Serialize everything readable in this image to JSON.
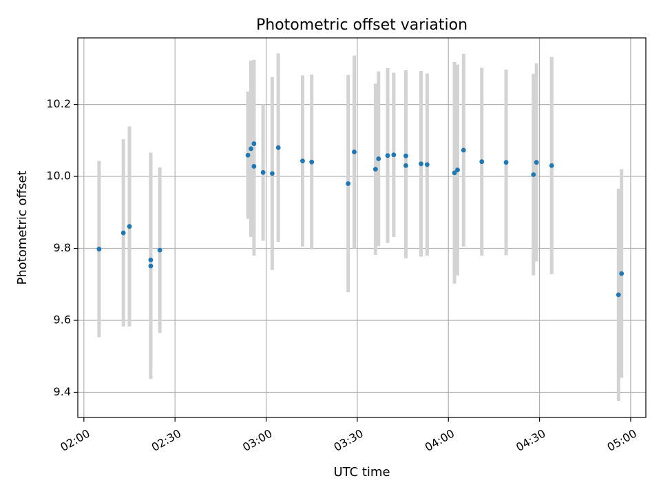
{
  "chart_data": {
    "type": "scatter",
    "title": "Photometric offset variation",
    "xlabel": "UTC time",
    "ylabel": "Photometric offset",
    "grid": true,
    "x_ticks": [
      "02:00",
      "02:30",
      "03:00",
      "03:30",
      "04:00",
      "04:30",
      "05:00"
    ],
    "xlim": [
      "01:58",
      "05:05"
    ],
    "y_ticks": [
      "9.4",
      "9.6",
      "9.8",
      "10.0",
      "10.2"
    ],
    "ylim": [
      9.33,
      10.385
    ],
    "colors": {
      "points": "#1f77b4",
      "errorbars": "#d3d3d3",
      "grid": "#b0b0b0"
    },
    "points": [
      {
        "t": "02:05",
        "y": 9.798,
        "err": 0.245
      },
      {
        "t": "02:13",
        "y": 9.843,
        "err": 0.26
      },
      {
        "t": "02:15",
        "y": 9.861,
        "err": 0.278
      },
      {
        "t": "02:22",
        "y": 9.768,
        "err": 0.298
      },
      {
        "t": "02:22",
        "y": 9.751,
        "err": 0.314
      },
      {
        "t": "02:25",
        "y": 9.795,
        "err": 0.23
      },
      {
        "t": "02:54",
        "y": 10.059,
        "err": 0.177
      },
      {
        "t": "02:55",
        "y": 10.077,
        "err": 0.245
      },
      {
        "t": "02:56",
        "y": 10.091,
        "err": 0.233
      },
      {
        "t": "02:56",
        "y": 10.028,
        "err": 0.248
      },
      {
        "t": "02:59",
        "y": 10.011,
        "err": 0.19
      },
      {
        "t": "03:02",
        "y": 10.008,
        "err": 0.268
      },
      {
        "t": "03:04",
        "y": 10.08,
        "err": 0.262
      },
      {
        "t": "03:12",
        "y": 10.043,
        "err": 0.238
      },
      {
        "t": "03:15",
        "y": 10.04,
        "err": 0.243
      },
      {
        "t": "03:27",
        "y": 9.98,
        "err": 0.302
      },
      {
        "t": "03:29",
        "y": 10.068,
        "err": 0.268
      },
      {
        "t": "03:36",
        "y": 10.02,
        "err": 0.238
      },
      {
        "t": "03:37",
        "y": 10.049,
        "err": 0.243
      },
      {
        "t": "03:40",
        "y": 10.058,
        "err": 0.243
      },
      {
        "t": "03:42",
        "y": 10.06,
        "err": 0.228
      },
      {
        "t": "03:46",
        "y": 10.057,
        "err": 0.238
      },
      {
        "t": "03:46",
        "y": 10.03,
        "err": 0.258
      },
      {
        "t": "03:51",
        "y": 10.035,
        "err": 0.258
      },
      {
        "t": "03:53",
        "y": 10.033,
        "err": 0.253
      },
      {
        "t": "04:02",
        "y": 10.01,
        "err": 0.308
      },
      {
        "t": "04:03",
        "y": 10.018,
        "err": 0.293
      },
      {
        "t": "04:05",
        "y": 10.073,
        "err": 0.268
      },
      {
        "t": "04:11",
        "y": 10.041,
        "err": 0.261
      },
      {
        "t": "04:19",
        "y": 10.039,
        "err": 0.258
      },
      {
        "t": "04:28",
        "y": 10.005,
        "err": 0.28
      },
      {
        "t": "04:29",
        "y": 10.039,
        "err": 0.275
      },
      {
        "t": "04:34",
        "y": 10.03,
        "err": 0.302
      },
      {
        "t": "04:56",
        "y": 9.671,
        "err": 0.295
      },
      {
        "t": "04:57",
        "y": 9.73,
        "err": 0.29
      }
    ]
  }
}
